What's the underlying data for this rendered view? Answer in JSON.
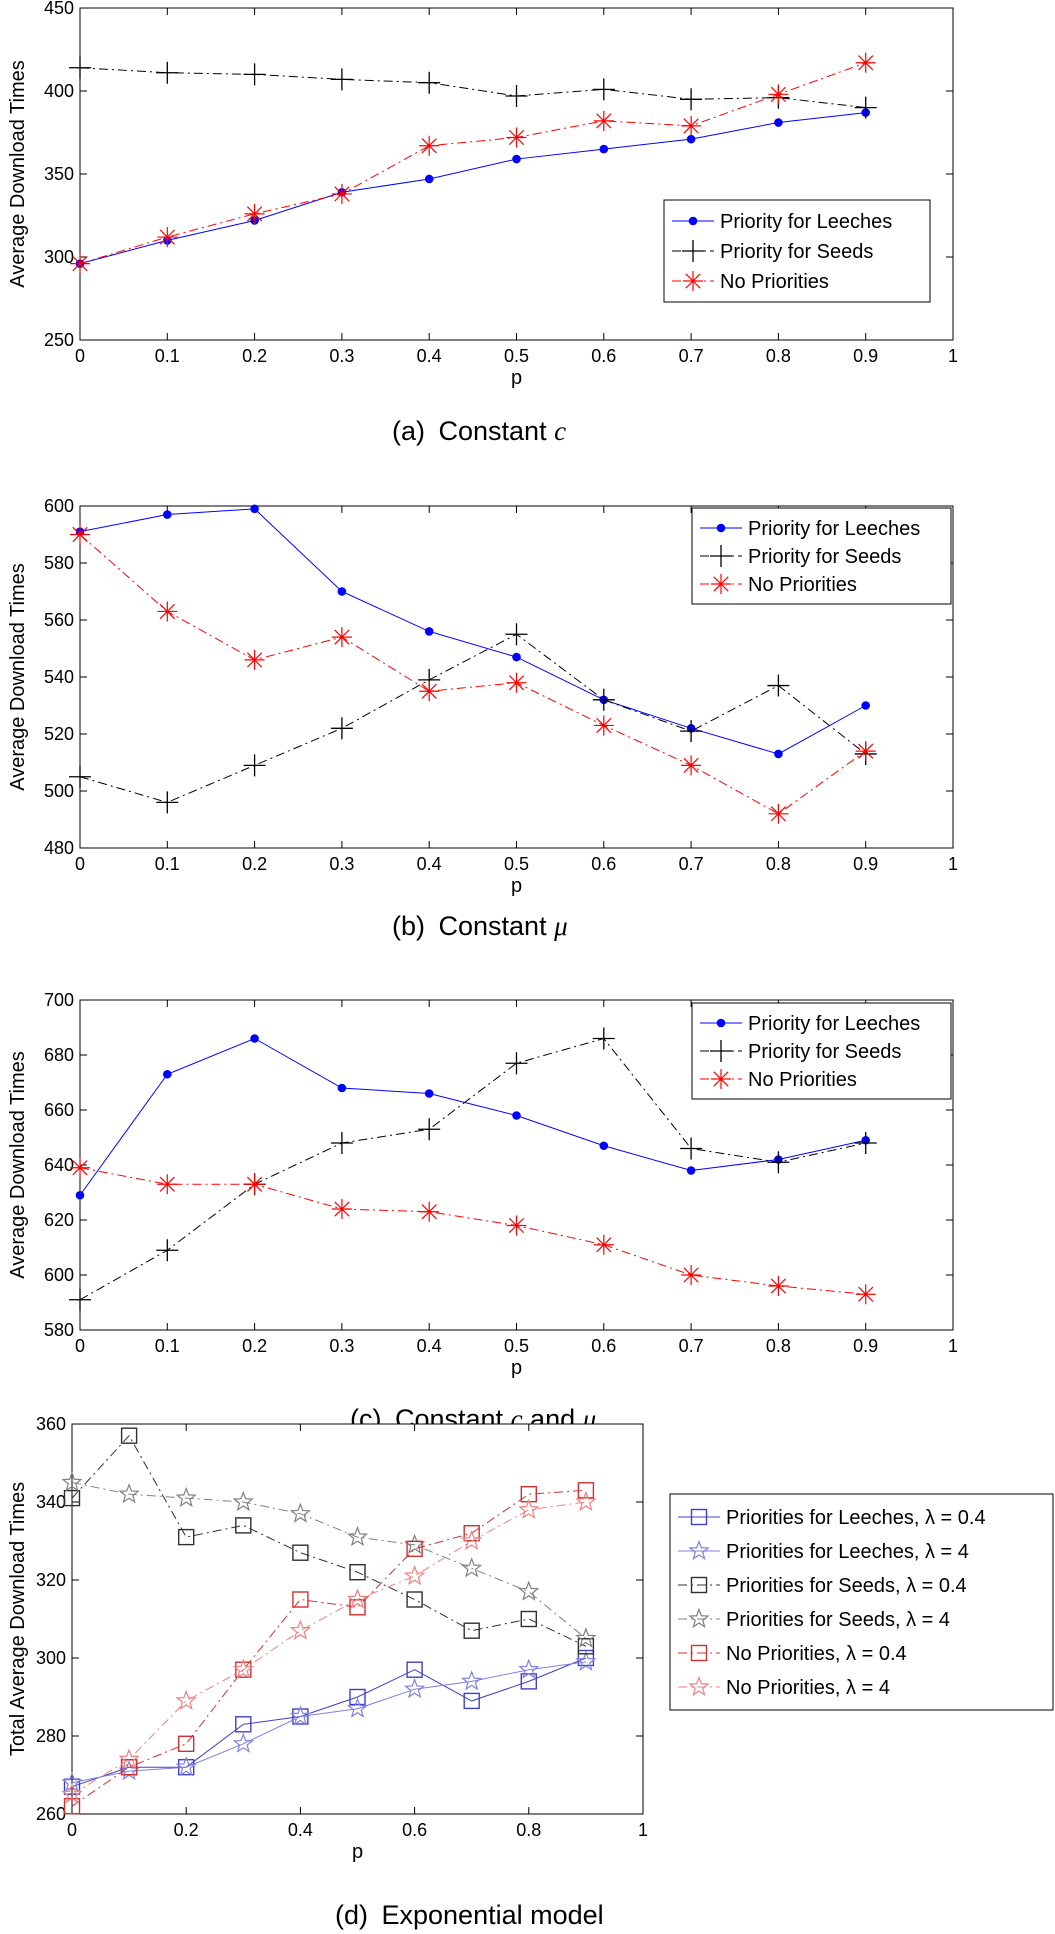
{
  "chart_data": [
    {
      "type": "line",
      "panel": "a",
      "caption": {
        "prefix": "(a)",
        "text": "Constant",
        "var": "c"
      },
      "xlabel": "p",
      "ylabel": "Average Download Times",
      "xlim": [
        0,
        1
      ],
      "ylim": [
        250,
        450
      ],
      "xticks": [
        "0",
        "0.1",
        "0.2",
        "0.3",
        "0.4",
        "0.5",
        "0.6",
        "0.7",
        "0.8",
        "0.9",
        "1"
      ],
      "yticks": [
        "250",
        "300",
        "350",
        "400",
        "450"
      ],
      "legend_position": "center-right",
      "x": [
        0,
        0.1,
        0.2,
        0.3,
        0.4,
        0.5,
        0.6,
        0.7,
        0.8,
        0.9
      ],
      "series": [
        {
          "name": "Priority for Leeches",
          "color": "#0000ff",
          "marker": "dot",
          "dash": "solid",
          "values": [
            296,
            310,
            322,
            339,
            347,
            359,
            365,
            371,
            381,
            387
          ]
        },
        {
          "name": "Priority for Seeds",
          "color": "#000000",
          "marker": "plus",
          "dash": "dashdot",
          "values": [
            414,
            411,
            410,
            407,
            405,
            397,
            401,
            395,
            396,
            390
          ]
        },
        {
          "name": "No Priorities",
          "color": "#ff0000",
          "marker": "asterisk",
          "dash": "dashdot",
          "values": [
            296,
            312,
            326,
            338,
            367,
            372,
            382,
            379,
            398,
            417
          ]
        }
      ]
    },
    {
      "type": "line",
      "panel": "b",
      "caption": {
        "prefix": "(b)",
        "text": "Constant",
        "var": "μ"
      },
      "xlabel": "p",
      "ylabel": "Average Download Times",
      "xlim": [
        0,
        1
      ],
      "ylim": [
        480,
        600
      ],
      "xticks": [
        "0",
        "0.1",
        "0.2",
        "0.3",
        "0.4",
        "0.5",
        "0.6",
        "0.7",
        "0.8",
        "0.9",
        "1"
      ],
      "yticks": [
        "480",
        "500",
        "520",
        "540",
        "560",
        "580",
        "600"
      ],
      "legend_position": "top-right",
      "x": [
        0,
        0.1,
        0.2,
        0.3,
        0.4,
        0.5,
        0.6,
        0.7,
        0.8,
        0.9
      ],
      "series": [
        {
          "name": "Priority for Leeches",
          "color": "#0000ff",
          "marker": "dot",
          "dash": "solid",
          "values": [
            591,
            597,
            599,
            570,
            556,
            547,
            532,
            522,
            513,
            530
          ]
        },
        {
          "name": "Priority for Seeds",
          "color": "#000000",
          "marker": "plus",
          "dash": "dashdot",
          "values": [
            505,
            496,
            509,
            522,
            539,
            555,
            532,
            521,
            537,
            513
          ]
        },
        {
          "name": "No Priorities",
          "color": "#ff0000",
          "marker": "asterisk",
          "dash": "dashdot",
          "values": [
            590,
            563,
            546,
            554,
            535,
            538,
            523,
            509,
            492,
            514
          ]
        }
      ]
    },
    {
      "type": "line",
      "panel": "c",
      "caption": {
        "prefix": "(c)",
        "text": "Constant",
        "var": "c",
        "and": "and",
        "var2": "μ"
      },
      "xlabel": "p",
      "ylabel": "Average Download Times",
      "xlim": [
        0,
        1
      ],
      "ylim": [
        580,
        700
      ],
      "xticks": [
        "0",
        "0.1",
        "0.2",
        "0.3",
        "0.4",
        "0.5",
        "0.6",
        "0.7",
        "0.8",
        "0.9",
        "1"
      ],
      "yticks": [
        "580",
        "600",
        "620",
        "640",
        "660",
        "680",
        "700"
      ],
      "legend_position": "top-right",
      "x": [
        0,
        0.1,
        0.2,
        0.3,
        0.4,
        0.5,
        0.6,
        0.7,
        0.8,
        0.9
      ],
      "series": [
        {
          "name": "Priority for Leeches",
          "color": "#0000ff",
          "marker": "dot",
          "dash": "solid",
          "values": [
            629,
            673,
            686,
            668,
            666,
            658,
            647,
            638,
            642,
            649
          ]
        },
        {
          "name": "Priority for Seeds",
          "color": "#000000",
          "marker": "plus",
          "dash": "dashdot",
          "values": [
            591,
            609,
            633,
            648,
            653,
            677,
            686,
            646,
            641,
            648
          ]
        },
        {
          "name": "No Priorities",
          "color": "#ff0000",
          "marker": "asterisk",
          "dash": "dashdot",
          "values": [
            639,
            633,
            633,
            624,
            623,
            618,
            611,
            600,
            596,
            593
          ]
        }
      ]
    },
    {
      "type": "line",
      "panel": "d",
      "caption": {
        "prefix": "(d)",
        "text": "Exponential model"
      },
      "xlabel": "p",
      "ylabel": "Total Average Download Times",
      "xlim": [
        0,
        1
      ],
      "ylim": [
        260,
        360
      ],
      "xticks": [
        "0",
        "0.2",
        "0.4",
        "0.6",
        "0.8",
        "1"
      ],
      "yticks": [
        "260",
        "280",
        "300",
        "320",
        "340",
        "360"
      ],
      "legend_position": "outside-right",
      "x": [
        0,
        0.1,
        0.2,
        0.3,
        0.4,
        0.5,
        0.6,
        0.7,
        0.8,
        0.9
      ],
      "series": [
        {
          "name": "Priorities for Leeches, λ = 0.4",
          "color": "#4040c8",
          "marker": "square",
          "dash": "solid",
          "values": [
            267,
            272,
            272,
            283,
            285,
            290,
            297,
            289,
            294,
            300
          ]
        },
        {
          "name": "Priorities for Leeches, λ = 4",
          "color": "#8080e0",
          "marker": "star",
          "dash": "solid",
          "values": [
            268,
            271,
            272,
            278,
            285,
            287,
            292,
            294,
            297,
            299
          ]
        },
        {
          "name": "Priorities for Seeds, λ = 0.4",
          "color": "#303030",
          "marker": "square",
          "dash": "dashdot",
          "values": [
            341,
            357,
            331,
            334,
            327,
            322,
            315,
            307,
            310,
            303
          ]
        },
        {
          "name": "Priorities for Seeds, λ = 4",
          "color": "#808080",
          "marker": "star",
          "dash": "dashdot",
          "values": [
            345,
            342,
            341,
            340,
            337,
            331,
            329,
            323,
            317,
            305
          ]
        },
        {
          "name": "No Priorities, λ = 0.4",
          "color": "#d03030",
          "marker": "square",
          "dash": "dashdot",
          "values": [
            262,
            272,
            278,
            297,
            315,
            313,
            328,
            332,
            342,
            343
          ]
        },
        {
          "name": "No Priorities, λ = 4",
          "color": "#f08080",
          "marker": "star",
          "dash": "dashdot",
          "values": [
            265,
            274,
            289,
            297,
            307,
            315,
            321,
            330,
            338,
            340
          ]
        }
      ]
    }
  ]
}
